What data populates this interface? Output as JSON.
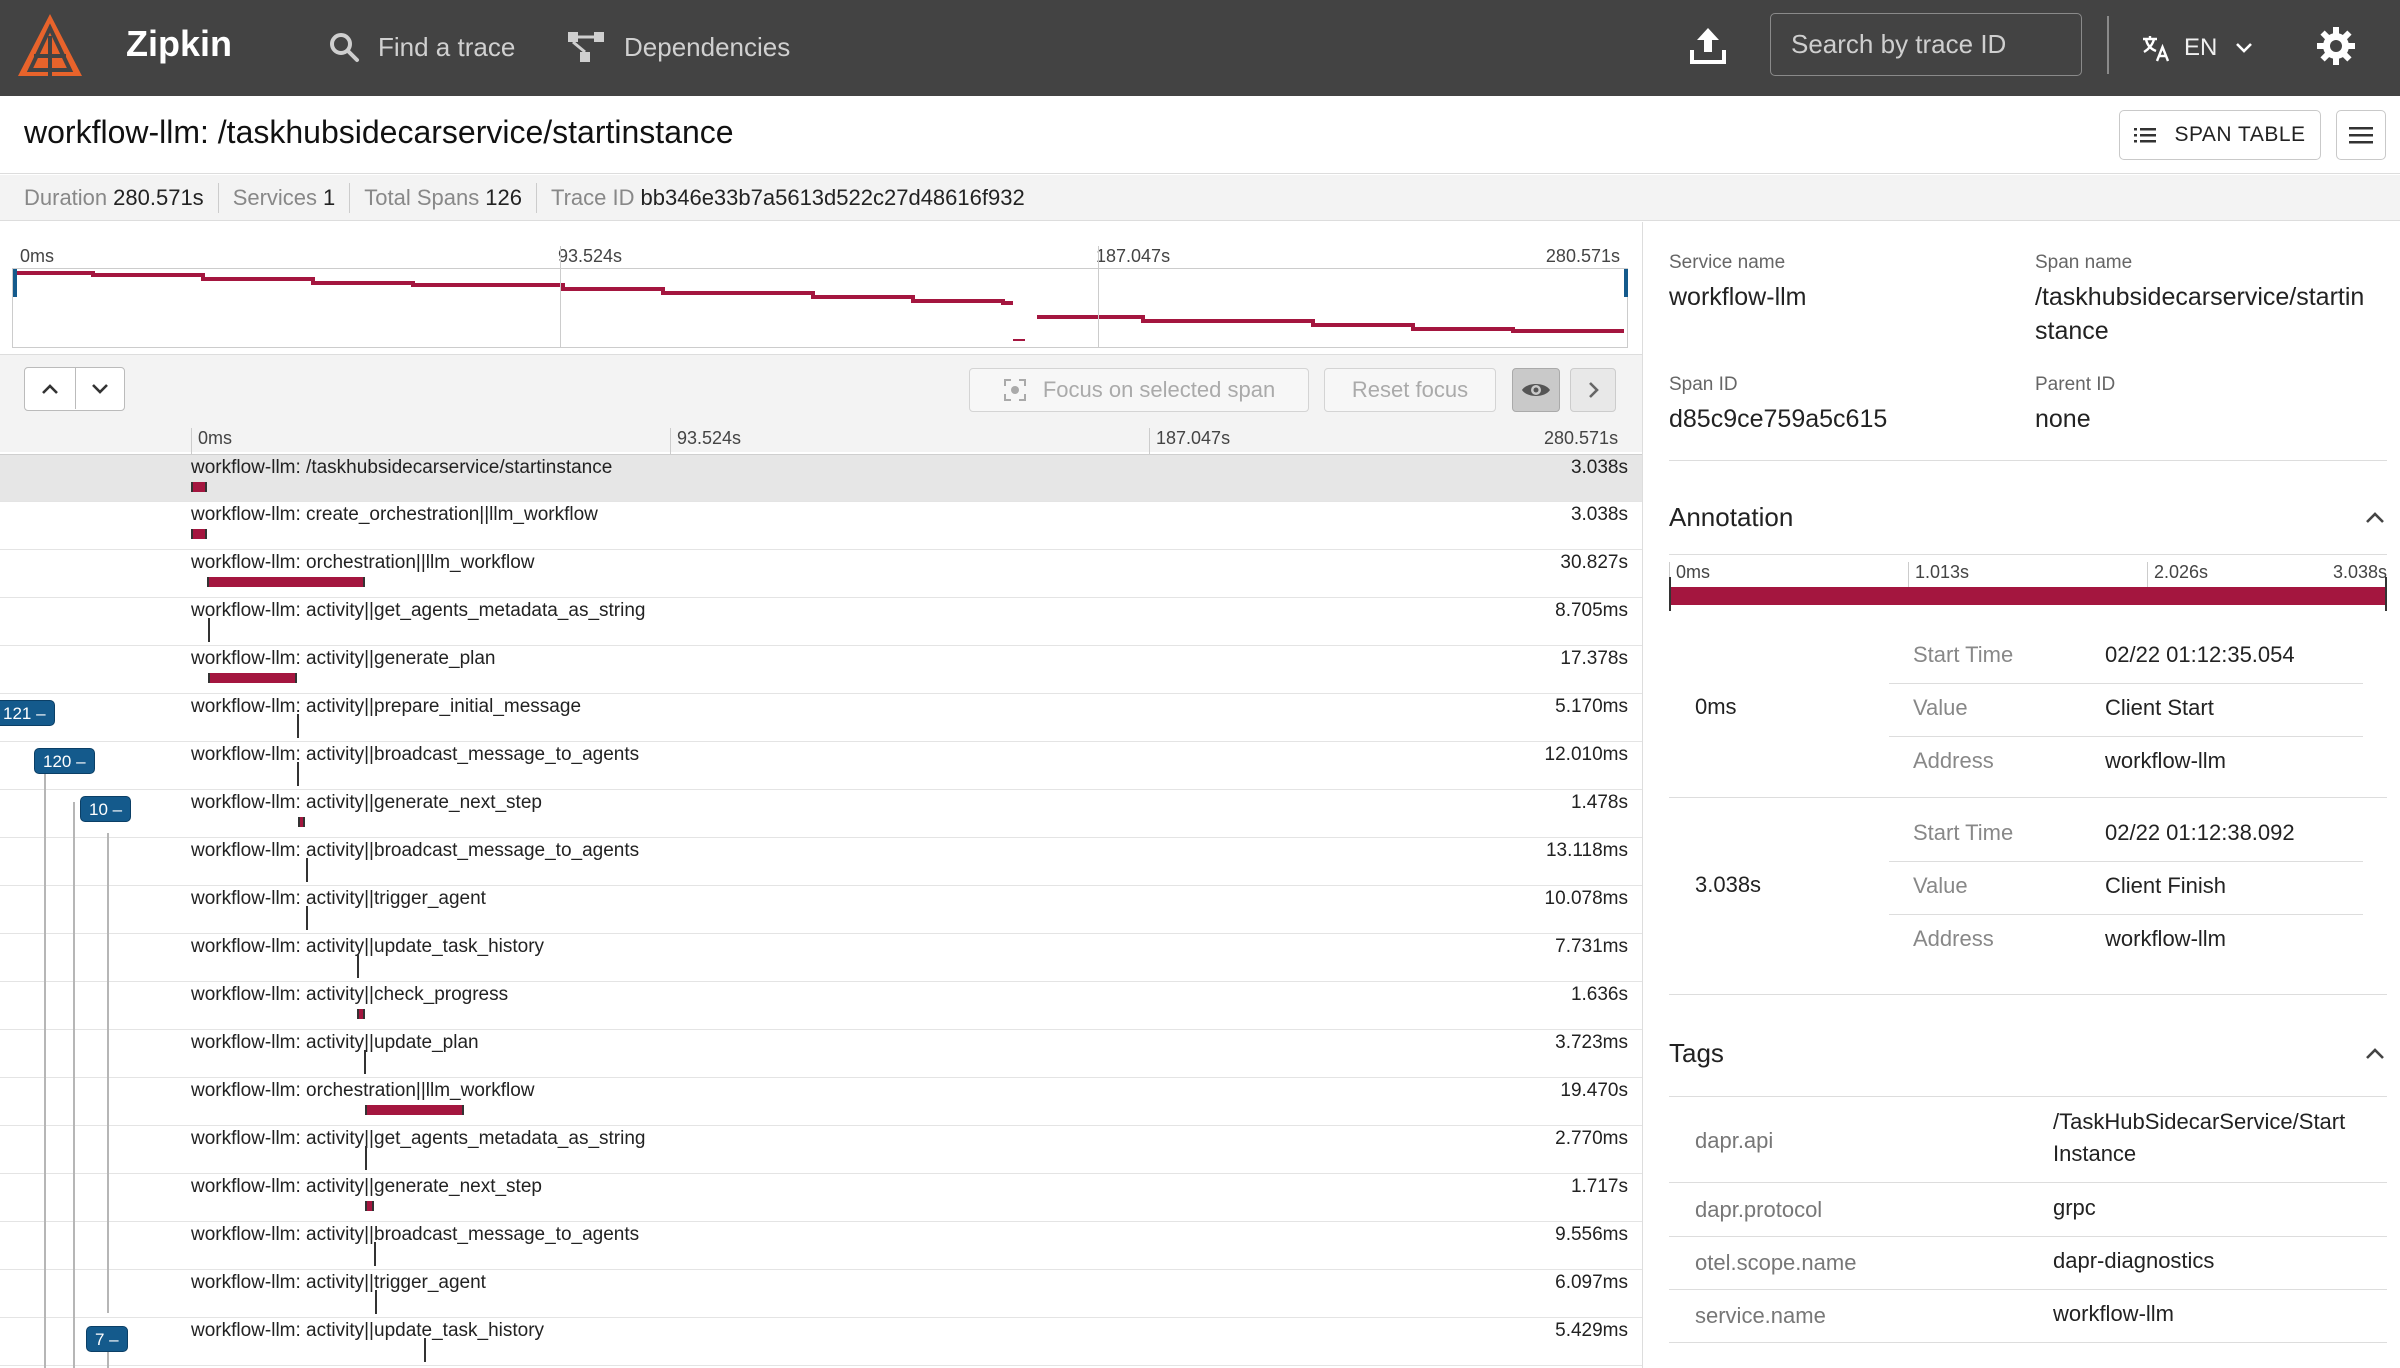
{
  "header": {
    "brand": "Zipkin",
    "nav_find": "Find a trace",
    "nav_deps": "Dependencies",
    "search_placeholder": "Search by trace ID",
    "lang": "EN",
    "accent": "#e8632b"
  },
  "trace": {
    "title": "workflow-llm: /taskhubsidecarservice/startinstance",
    "span_table_label": "SPAN TABLE",
    "summary": {
      "duration_label": "Duration",
      "duration": "280.571s",
      "services_label": "Services",
      "services": "1",
      "spans_label": "Total Spans",
      "spans": "126",
      "traceid_label": "Trace ID",
      "traceid": "bb346e33b7a5613d522c27d48616f932"
    }
  },
  "minimap": {
    "ticks": [
      "0ms",
      "93.524s",
      "187.047s",
      "280.571s"
    ]
  },
  "controls": {
    "focus_label": "Focus on selected span",
    "reset_label": "Reset focus"
  },
  "timeline": {
    "ticks": [
      "0ms",
      "93.524s",
      "187.047s",
      "280.571s"
    ],
    "bar_color": "#a4163f",
    "badges": [
      "121 –",
      "120 –",
      "10 –",
      "7 –"
    ],
    "rows": [
      {
        "name": "workflow-llm: /taskhubsidecarservice/startinstance",
        "duration": "3.038s",
        "start": 0.0,
        "width": 0.0109
      },
      {
        "name": "workflow-llm: create_orchestration||llm_workflow",
        "duration": "3.038s",
        "start": 0.0,
        "width": 0.0109
      },
      {
        "name": "workflow-llm: orchestration||llm_workflow",
        "duration": "30.827s",
        "start": 0.0109,
        "width": 0.1099
      },
      {
        "name": "workflow-llm: activity||get_agents_metadata_as_string",
        "duration": "8.705ms",
        "start": 0.0115,
        "width": 0.0
      },
      {
        "name": "workflow-llm: activity||generate_plan",
        "duration": "17.378s",
        "start": 0.0116,
        "width": 0.0619
      },
      {
        "name": "workflow-llm: activity||prepare_initial_message",
        "duration": "5.170ms",
        "start": 0.0737,
        "width": 0.0
      },
      {
        "name": "workflow-llm: activity||broadcast_message_to_agents",
        "duration": "12.010ms",
        "start": 0.0739,
        "width": 0.0
      },
      {
        "name": "workflow-llm: activity||generate_next_step",
        "duration": "1.478s",
        "start": 0.0742,
        "width": 0.0053
      },
      {
        "name": "workflow-llm: activity||broadcast_message_to_agents",
        "duration": "13.118ms",
        "start": 0.0797,
        "width": 0.0
      },
      {
        "name": "workflow-llm: activity||trigger_agent",
        "duration": "10.078ms",
        "start": 0.0799,
        "width": 0.0
      },
      {
        "name": "workflow-llm: activity||update_task_history",
        "duration": "7.731ms",
        "start": 0.1153,
        "width": 0.0
      },
      {
        "name": "workflow-llm: activity||check_progress",
        "duration": "1.636s",
        "start": 0.1155,
        "width": 0.0058
      },
      {
        "name": "workflow-llm: activity||update_plan",
        "duration": "3.723ms",
        "start": 0.1206,
        "width": 0.0
      },
      {
        "name": "workflow-llm: orchestration||llm_workflow",
        "duration": "19.470s",
        "start": 0.1208,
        "width": 0.0694
      },
      {
        "name": "workflow-llm: activity||get_agents_metadata_as_string",
        "duration": "2.770ms",
        "start": 0.1211,
        "width": 0.0
      },
      {
        "name": "workflow-llm: activity||generate_next_step",
        "duration": "1.717s",
        "start": 0.1213,
        "width": 0.0061
      },
      {
        "name": "workflow-llm: activity||broadcast_message_to_agents",
        "duration": "9.556ms",
        "start": 0.1276,
        "width": 0.0
      },
      {
        "name": "workflow-llm: activity||trigger_agent",
        "duration": "6.097ms",
        "start": 0.1278,
        "width": 0.0
      },
      {
        "name": "workflow-llm: activity||update_task_history",
        "duration": "5.429ms",
        "start": 0.1621,
        "width": 0.0
      }
    ]
  },
  "detail": {
    "service_label": "Service name",
    "service": "workflow-llm",
    "span_name_label": "Span name",
    "span_name_1": "/taskhubsidecarservice/startin",
    "span_name_2": "stance",
    "span_id_label": "Span ID",
    "span_id": "d85c9ce759a5c615",
    "parent_id_label": "Parent ID",
    "parent_id": "none",
    "annotation_title": "Annotation",
    "annotation_ticks": [
      "0ms",
      "1.013s",
      "2.026s",
      "3.038s"
    ],
    "annotations": [
      {
        "time": "0ms",
        "start_label": "Start Time",
        "start": "02/22 01:12:35.054",
        "value_label": "Value",
        "value": "Client Start",
        "address_label": "Address",
        "address": "workflow-llm"
      },
      {
        "time": "3.038s",
        "start_label": "Start Time",
        "start": "02/22 01:12:38.092",
        "value_label": "Value",
        "value": "Client Finish",
        "address_label": "Address",
        "address": "workflow-llm"
      }
    ],
    "tags_title": "Tags",
    "tags": [
      {
        "key": "dapr.api",
        "value_1": "/TaskHubSidecarService/Start",
        "value_2": "Instance"
      },
      {
        "key": "dapr.protocol",
        "value_1": "grpc",
        "value_2": ""
      },
      {
        "key": "otel.scope.name",
        "value_1": "dapr-diagnostics",
        "value_2": ""
      },
      {
        "key": "service.name",
        "value_1": "workflow-llm",
        "value_2": ""
      }
    ]
  }
}
